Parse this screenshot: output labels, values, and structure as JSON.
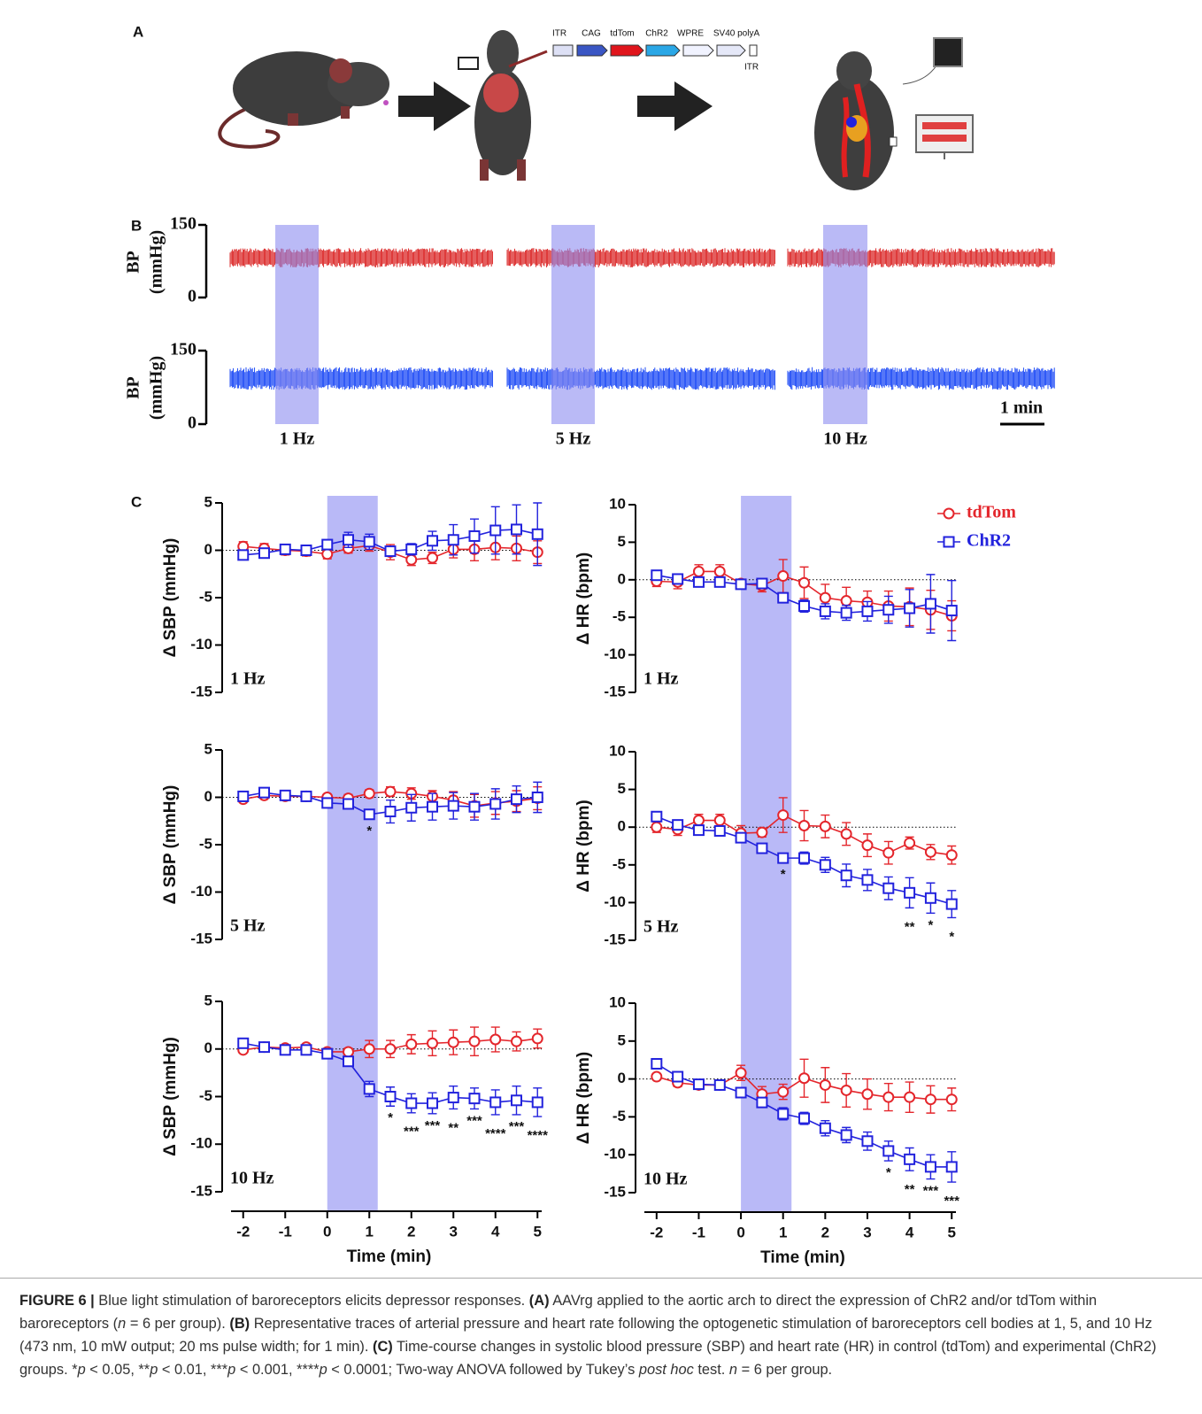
{
  "panel_labels": [
    "A",
    "B",
    "C"
  ],
  "panel_a": {
    "construct": [
      "ITR",
      "CAG",
      "tdTom",
      "ChR2",
      "WPRE",
      "SV40 polyA",
      "ITR"
    ]
  },
  "panel_b": {
    "ylabel": [
      "BP",
      "(mmHg)"
    ],
    "ylim": [
      0,
      150
    ],
    "yticks": [
      0,
      150
    ],
    "traces": [
      {
        "color": "#d81818",
        "range": [
          62,
          102
        ]
      },
      {
        "color": "#0b3cf5",
        "range": [
          70,
          116
        ]
      }
    ],
    "stim_labels": [
      "1 Hz",
      "5 Hz",
      "10 Hz"
    ],
    "scale_bar": "1 min",
    "shade_color": "#8c8cf0"
  },
  "stimulation_window": {
    "x": [
      0,
      1.2
    ],
    "color": "#b9b9f7"
  },
  "chart_data": [
    {
      "type": "line",
      "ylabel": "Δ SBP (mmHg)",
      "label": "1 Hz",
      "x": [
        -2,
        -1.5,
        -1,
        -0.5,
        0,
        0.5,
        1,
        1.5,
        2,
        2.5,
        3,
        3.5,
        4,
        4.5,
        5
      ],
      "xlim": [
        -2.5,
        5.1
      ],
      "ylim": [
        -15,
        5
      ],
      "yticks": [
        5,
        0,
        -5,
        -10,
        -15
      ],
      "zero_line": true,
      "series": [
        {
          "color": "#e4262c",
          "marker": "circle",
          "values": [
            0.4,
            0.2,
            0,
            -0.1,
            -0.4,
            0.2,
            0.5,
            -0.2,
            -1.0,
            -0.8,
            0.1,
            0.1,
            0.3,
            0.2,
            -0.2
          ],
          "errors": [
            0.5,
            0.5,
            0.5,
            0.5,
            0.5,
            0.5,
            0.6,
            0.8,
            0.6,
            0.6,
            0.9,
            1.2,
            1.3,
            1.3,
            1.2
          ]
        },
        {
          "color": "#2222dd",
          "marker": "square",
          "values": [
            -0.5,
            -0.3,
            0.1,
            0.0,
            0.6,
            1.1,
            0.9,
            -0.1,
            0.1,
            1.0,
            1.1,
            1.5,
            2.1,
            2.2,
            1.7
          ],
          "errors": [
            0.3,
            0.4,
            0.4,
            0.4,
            0.5,
            0.8,
            0.8,
            0.4,
            0.6,
            1.0,
            1.6,
            1.8,
            2.5,
            2.6,
            3.3
          ]
        }
      ]
    },
    {
      "type": "line",
      "ylabel": "Δ HR (bpm)",
      "label": "1 Hz",
      "x": [
        -2,
        -1.5,
        -1,
        -0.5,
        0,
        0.5,
        1,
        1.5,
        2,
        2.5,
        3,
        3.5,
        4,
        4.5,
        5
      ],
      "xlim": [
        -2.5,
        5.1
      ],
      "ylim": [
        -15,
        10
      ],
      "yticks": [
        10,
        5,
        0,
        -5,
        -10,
        -15
      ],
      "zero_line": true,
      "legend": "top-right",
      "series": [
        {
          "name": "tdTom",
          "color": "#e4262c",
          "marker": "circle",
          "values": [
            -0.2,
            -0.3,
            1.1,
            1.1,
            -0.5,
            -0.8,
            0.5,
            -0.4,
            -2.4,
            -2.8,
            -3.0,
            -3.5,
            -3.6,
            -4.0,
            -4.8
          ],
          "errors": [
            0.7,
            0.9,
            0.9,
            0.9,
            0.4,
            0.8,
            2.2,
            2.1,
            1.8,
            1.8,
            1.5,
            2.0,
            2.5,
            2.6,
            2.0
          ]
        },
        {
          "name": "ChR2",
          "color": "#2222dd",
          "marker": "square",
          "values": [
            0.6,
            0.1,
            -0.3,
            -0.3,
            -0.6,
            -0.5,
            -2.4,
            -3.5,
            -4.2,
            -4.4,
            -4.2,
            -4.0,
            -3.8,
            -3.2,
            -4.1
          ],
          "errors": [
            0.3,
            0.4,
            0.3,
            0.3,
            0.3,
            0.4,
            0.4,
            0.8,
            1.0,
            1.0,
            1.3,
            1.8,
            2.5,
            3.9,
            4.0
          ]
        }
      ]
    },
    {
      "type": "line",
      "ylabel": "Δ SBP (mmHg)",
      "label": "5 Hz",
      "x": [
        -2,
        -1.5,
        -1,
        -0.5,
        0,
        0.5,
        1,
        1.5,
        2,
        2.5,
        3,
        3.5,
        4,
        4.5,
        5
      ],
      "xlim": [
        -2.5,
        5.1
      ],
      "ylim": [
        -15,
        5
      ],
      "yticks": [
        5,
        0,
        -5,
        -10,
        -15
      ],
      "zero_line": true,
      "series": [
        {
          "color": "#e4262c",
          "marker": "circle",
          "values": [
            -0.2,
            0.2,
            0.1,
            0.1,
            0.0,
            -0.1,
            0.4,
            0.6,
            0.4,
            0.1,
            -0.3,
            -0.9,
            -0.6,
            -0.4,
            -0.1
          ],
          "errors": [
            0.2,
            0.2,
            0.2,
            0.2,
            0.3,
            0.4,
            0.4,
            0.5,
            0.6,
            0.6,
            0.9,
            1.2,
            1.2,
            1.1,
            1.2
          ]
        },
        {
          "color": "#2222dd",
          "marker": "square",
          "values": [
            0.1,
            0.5,
            0.2,
            0.1,
            -0.6,
            -0.7,
            -1.8,
            -1.5,
            -1.1,
            -1.0,
            -0.9,
            -1.0,
            -0.7,
            -0.2,
            0
          ],
          "errors": [
            0.3,
            0.3,
            0.3,
            0.3,
            0.3,
            0.4,
            0.5,
            1.2,
            1.4,
            1.4,
            1.4,
            1.4,
            1.6,
            1.4,
            1.6
          ]
        }
      ],
      "annotations": [
        {
          "x": 1,
          "text": "*"
        }
      ]
    },
    {
      "type": "line",
      "ylabel": "Δ HR (bpm)",
      "label": "5 Hz",
      "x": [
        -2,
        -1.5,
        -1,
        -0.5,
        0,
        0.5,
        1,
        1.5,
        2,
        2.5,
        3,
        3.5,
        4,
        4.5,
        5
      ],
      "xlim": [
        -2.5,
        5.1
      ],
      "ylim": [
        -15,
        10
      ],
      "yticks": [
        10,
        5,
        0,
        -5,
        -10,
        -15
      ],
      "zero_line": true,
      "series": [
        {
          "color": "#e4262c",
          "marker": "circle",
          "values": [
            0,
            -0.3,
            0.9,
            0.9,
            -0.8,
            -0.7,
            1.6,
            0.2,
            0.1,
            -0.9,
            -2.4,
            -3.4,
            -2.1,
            -3.3,
            -3.7
          ],
          "errors": [
            0.7,
            0.8,
            0.8,
            0.8,
            1.0,
            0.6,
            2.3,
            2.0,
            1.5,
            1.5,
            1.5,
            1.5,
            0.8,
            1.0,
            1.2
          ]
        },
        {
          "color": "#2222dd",
          "marker": "square",
          "values": [
            1.4,
            0.3,
            -0.4,
            -0.5,
            -1.4,
            -2.8,
            -4.1,
            -4.1,
            -5.0,
            -6.4,
            -7.0,
            -8.1,
            -8.7,
            -9.4,
            -10.2
          ],
          "errors": [
            0.3,
            0.3,
            0.3,
            0.3,
            0.4,
            0.4,
            0.6,
            0.8,
            1.0,
            1.5,
            1.4,
            1.5,
            2.0,
            2.0,
            1.8
          ]
        }
      ],
      "annotations": [
        {
          "x": 1,
          "text": "*"
        },
        {
          "x": 4,
          "text": "**"
        },
        {
          "x": 4.5,
          "text": "*"
        },
        {
          "x": 5,
          "text": "*"
        }
      ]
    },
    {
      "type": "line",
      "ylabel": "Δ SBP (mmHg)",
      "label": "10 Hz",
      "xlabel": "Time (min)",
      "x": [
        -2,
        -1.5,
        -1,
        -0.5,
        0,
        0.5,
        1,
        1.5,
        2,
        2.5,
        3,
        3.5,
        4,
        4.5,
        5
      ],
      "xlim": [
        -2.5,
        5.1
      ],
      "xticks": [
        -2,
        -1,
        0,
        1,
        2,
        3,
        4,
        5
      ],
      "ylim": [
        -15,
        5
      ],
      "yticks": [
        5,
        0,
        -5,
        -10,
        -15
      ],
      "zero_line": true,
      "series": [
        {
          "color": "#e4262c",
          "marker": "circle",
          "values": [
            -0.1,
            0.2,
            0.1,
            0.2,
            -0.3,
            -0.3,
            0,
            0,
            0.5,
            0.6,
            0.7,
            0.8,
            1.0,
            0.8,
            1.1
          ],
          "errors": [
            0.2,
            0.2,
            0.3,
            0.3,
            0.3,
            0.4,
            0.9,
            0.9,
            1.0,
            1.3,
            1.3,
            1.5,
            1.3,
            1.0,
            1.0
          ]
        },
        {
          "color": "#2222dd",
          "marker": "square",
          "values": [
            0.6,
            0.2,
            -0.1,
            -0.1,
            -0.5,
            -1.3,
            -4.2,
            -5.0,
            -5.7,
            -5.7,
            -5.1,
            -5.2,
            -5.6,
            -5.4,
            -5.6
          ],
          "errors": [
            0.2,
            0.2,
            0.3,
            0.3,
            0.3,
            0.5,
            0.8,
            1.0,
            1.0,
            1.1,
            1.2,
            1.1,
            1.3,
            1.5,
            1.5
          ]
        }
      ],
      "annotations": [
        {
          "x": 1.5,
          "text": "*"
        },
        {
          "x": 2,
          "text": "***"
        },
        {
          "x": 2.5,
          "text": "***"
        },
        {
          "x": 3,
          "text": "**"
        },
        {
          "x": 3.5,
          "text": "***"
        },
        {
          "x": 4,
          "text": "****"
        },
        {
          "x": 4.5,
          "text": "***"
        },
        {
          "x": 5,
          "text": "****"
        }
      ]
    },
    {
      "type": "line",
      "ylabel": "Δ HR (bpm)",
      "label": "10 Hz",
      "xlabel": "Time (min)",
      "x": [
        -2,
        -1.5,
        -1,
        -0.5,
        0,
        0.5,
        1,
        1.5,
        2,
        2.5,
        3,
        3.5,
        4,
        4.5,
        5
      ],
      "xlim": [
        -2.5,
        5.1
      ],
      "xticks": [
        -2,
        -1,
        0,
        1,
        2,
        3,
        4,
        5
      ],
      "ylim": [
        -15,
        10
      ],
      "yticks": [
        10,
        5,
        0,
        -5,
        -10,
        -15
      ],
      "zero_line": true,
      "series": [
        {
          "color": "#e4262c",
          "marker": "circle",
          "values": [
            0.3,
            -0.5,
            -0.8,
            -0.8,
            0.8,
            -2.0,
            -1.7,
            0.1,
            -0.8,
            -1.5,
            -2.0,
            -2.4,
            -2.4,
            -2.7,
            -2.7
          ],
          "errors": [
            0.3,
            0.5,
            0.5,
            0.5,
            1.0,
            1.0,
            1.0,
            2.5,
            2.3,
            2.2,
            2.0,
            1.8,
            2.0,
            1.8,
            1.5
          ]
        },
        {
          "color": "#2222dd",
          "marker": "square",
          "values": [
            2.0,
            0.3,
            -0.7,
            -0.8,
            -1.8,
            -3.1,
            -4.6,
            -5.2,
            -6.5,
            -7.4,
            -8.2,
            -9.5,
            -10.6,
            -11.6,
            -11.6
          ],
          "errors": [
            0.3,
            0.3,
            0.3,
            0.3,
            0.3,
            0.6,
            0.8,
            0.8,
            1.0,
            1.0,
            1.2,
            1.3,
            1.5,
            1.6,
            2.0
          ]
        }
      ],
      "annotations": [
        {
          "x": 3.5,
          "text": "*"
        },
        {
          "x": 4,
          "text": "**"
        },
        {
          "x": 4.5,
          "text": "***"
        },
        {
          "x": 5,
          "text": "***"
        }
      ]
    }
  ],
  "caption": [
    "FIGURE 6 |",
    " Blue light stimulation of baroreceptors elicits depressor responses. ",
    "(A)",
    " AAVrg applied to the aortic arch to direct the expression of ChR2 and/or tdTom within baroreceptors (",
    "n",
    " = 6 per group). ",
    "(B)",
    " Representative traces of arterial pressure and heart rate following the optogenetic stimulation of baroreceptors cell bodies at 1, 5, and 10 Hz (473 nm, 10 mW output; 20 ms pulse width; for 1 min). ",
    "(C)",
    " Time-course changes in systolic blood pressure (SBP) and heart rate (HR) in control (tdTom) and experimental (ChR2) groups. *",
    "p",
    " < 0.05, **",
    "p",
    " < 0.01, ***",
    "p",
    " < 0.001, ****",
    "p",
    " < 0.0001; Two-way ANOVA followed by Tukey’s ",
    "post hoc",
    " test. ",
    "n",
    " = 6 per group."
  ]
}
